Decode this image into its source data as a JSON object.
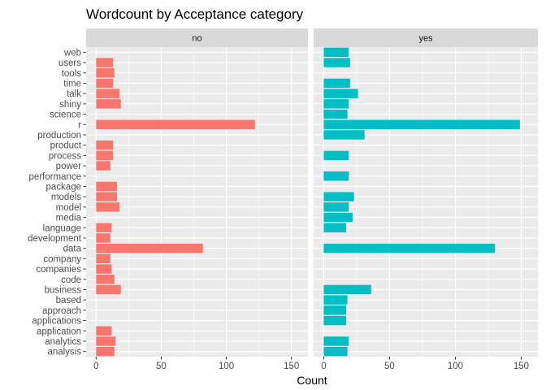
{
  "chart_data": {
    "type": "bar",
    "orientation": "horizontal",
    "title": "Wordcount by Acceptance category",
    "xlabel": "Count",
    "ylabel": "",
    "xlim": [
      0,
      155
    ],
    "x_ticks": [
      0,
      50,
      100,
      150
    ],
    "grid": true,
    "legend": "none",
    "categories": [
      "analysis",
      "analytics",
      "application",
      "applications",
      "approach",
      "based",
      "business",
      "code",
      "companies",
      "company",
      "data",
      "development",
      "language",
      "media",
      "model",
      "models",
      "package",
      "performance",
      "power",
      "process",
      "product",
      "production",
      "r",
      "science",
      "shiny",
      "talk",
      "time",
      "tools",
      "users",
      "web"
    ],
    "series": [
      {
        "name": "no",
        "color": "#F8766D",
        "values": [
          14,
          15,
          12,
          0,
          0,
          0,
          19,
          14,
          12,
          11,
          82,
          11,
          12,
          0,
          18,
          16,
          16,
          0,
          11,
          13,
          13,
          0,
          122,
          0,
          19,
          18,
          13,
          14,
          13,
          0
        ]
      },
      {
        "name": "yes",
        "color": "#00BFC4",
        "values": [
          18,
          19,
          0,
          17,
          17,
          18,
          36,
          0,
          0,
          0,
          130,
          0,
          17,
          22,
          19,
          23,
          0,
          19,
          0,
          19,
          0,
          31,
          149,
          18,
          19,
          26,
          20,
          0,
          20,
          19
        ]
      }
    ],
    "colors": {
      "panel_bg": "#EBEBEB",
      "strip_bg": "#D9D9D9",
      "grid": "#FFFFFF"
    }
  }
}
